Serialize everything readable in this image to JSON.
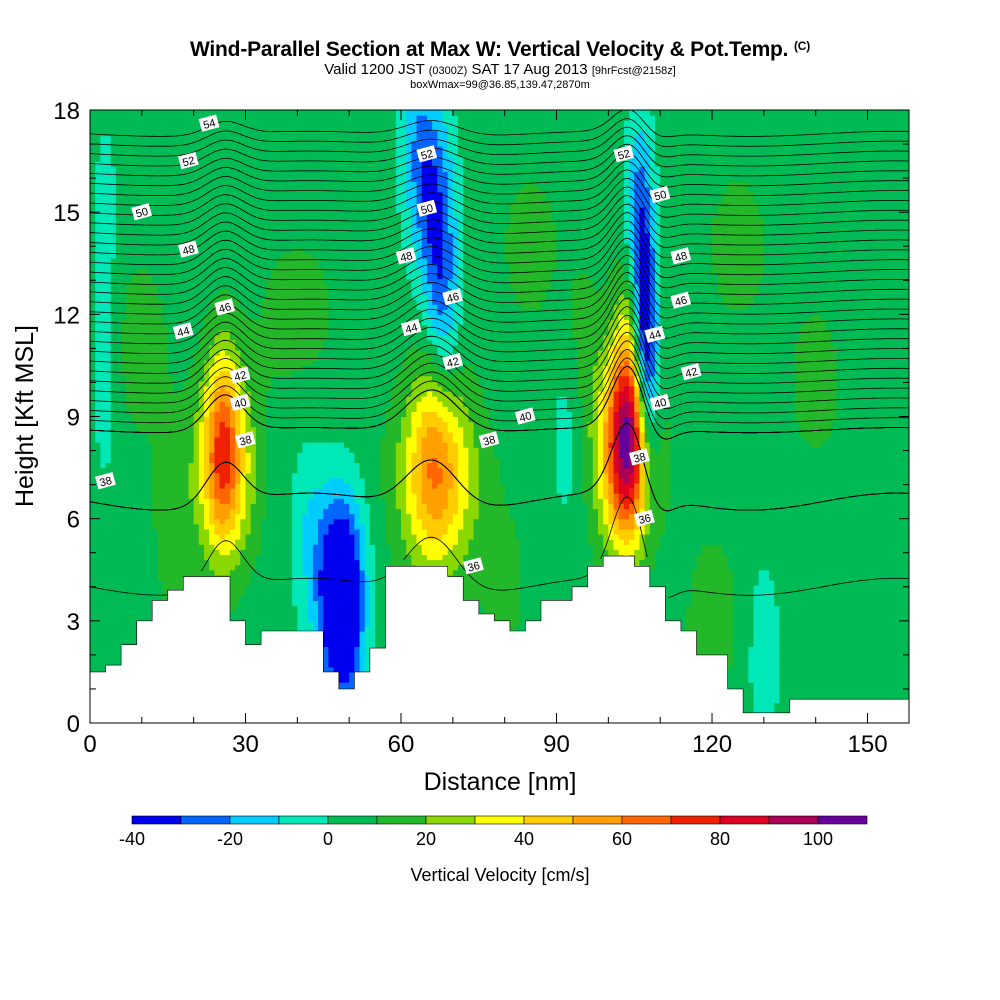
{
  "header": {
    "title": "Wind-Parallel Section at Max W: Vertical Velocity & Pot.Temp.",
    "copyright": "(C)",
    "valid_prefix": "Valid 1200 JST",
    "utc": "(0300Z)",
    "valid_date": "SAT 17 Aug 2013",
    "forecast": "[9hrFcst@2158z]",
    "box_info": "boxWmax=99@36.85,139.47,2870m"
  },
  "chart_data": {
    "type": "heatmap",
    "xlabel": "Distance [nm]",
    "ylabel": "Height [Kft MSL]",
    "xlim": [
      0,
      158
    ],
    "ylim": [
      0,
      18
    ],
    "x_ticks": [
      0,
      30,
      60,
      90,
      120,
      150
    ],
    "y_ticks": [
      0,
      3,
      6,
      9,
      12,
      15,
      18
    ],
    "colorbar": {
      "label": "Vertical Velocity [cm/s]",
      "levels": [
        -40,
        -30,
        -20,
        -10,
        0,
        10,
        20,
        30,
        40,
        50,
        60,
        70,
        80,
        90,
        100,
        110
      ],
      "tick_values": [
        -40,
        -20,
        0,
        20,
        40,
        60,
        80,
        100
      ],
      "tick_labels": [
        "-40",
        "-20",
        "0",
        "20",
        "40",
        "60",
        "80",
        "100"
      ],
      "colors": [
        "#0000ee",
        "#0066ff",
        "#00ccff",
        "#00e8b8",
        "#00bb55",
        "#22b82a",
        "#8ad800",
        "#ffff00",
        "#ffcc00",
        "#ffa000",
        "#ff6600",
        "#ee2200",
        "#dd0022",
        "#aa0055",
        "#66009a"
      ]
    },
    "background_w": 5,
    "w_features": [
      {
        "x": 26,
        "h": 7.5,
        "w": 12,
        "amp": 45
      },
      {
        "x": 25.5,
        "h": 8.5,
        "w": 7,
        "amp": 30
      },
      {
        "x": 67,
        "h": 7.2,
        "w": 16,
        "amp": 48
      },
      {
        "x": 66,
        "h": 8.5,
        "w": 8,
        "amp": 12
      },
      {
        "x": 103.5,
        "h": 8.0,
        "w": 12,
        "amp": 70
      },
      {
        "x": 103.5,
        "h": 8.5,
        "w": 7,
        "amp": 30
      },
      {
        "x": 105,
        "h": 11.5,
        "w": 8,
        "amp": 20
      },
      {
        "x": 107,
        "h": 11.5,
        "w": 5,
        "amp": -55
      },
      {
        "x": 106,
        "h": 15.0,
        "w": 6,
        "amp": -30
      },
      {
        "x": 108,
        "h": 9.0,
        "w": 5,
        "amp": -25
      },
      {
        "x": 66,
        "h": 15.5,
        "w": 9,
        "amp": -30
      },
      {
        "x": 68,
        "h": 12.5,
        "w": 7,
        "amp": -25
      },
      {
        "x": 63,
        "h": 17.5,
        "w": 8,
        "amp": -15
      },
      {
        "x": 48,
        "h": 4.0,
        "w": 10,
        "amp": -45
      },
      {
        "x": 49,
        "h": 3.0,
        "w": 8,
        "amp": -30
      },
      {
        "x": 42,
        "h": 5.8,
        "w": 8,
        "amp": -12
      },
      {
        "x": 3,
        "h": 10.0,
        "w": 5,
        "amp": -12
      },
      {
        "x": 3,
        "h": 15.0,
        "w": 5,
        "amp": -10
      },
      {
        "x": 130,
        "h": 2.0,
        "w": 7,
        "amp": -12
      },
      {
        "x": 92,
        "h": 8.5,
        "w": 7,
        "amp": -10
      },
      {
        "x": 16,
        "h": 6.0,
        "w": 8,
        "amp": 12
      },
      {
        "x": 10,
        "h": 11.0,
        "w": 12,
        "amp": 10
      },
      {
        "x": 40,
        "h": 12.0,
        "w": 20,
        "amp": 8
      },
      {
        "x": 85,
        "h": 14.0,
        "w": 15,
        "amp": 8
      },
      {
        "x": 125,
        "h": 14.0,
        "w": 16,
        "amp": 8
      },
      {
        "x": 140,
        "h": 10.0,
        "w": 14,
        "amp": 8
      },
      {
        "x": 80,
        "h": 4.0,
        "w": 10,
        "amp": 8
      },
      {
        "x": 120,
        "h": 3.0,
        "w": 12,
        "amp": 10
      },
      {
        "x": 95,
        "h": 11.0,
        "w": 8,
        "amp": 8
      }
    ],
    "terrain": {
      "x": [
        0,
        3,
        6,
        9,
        12,
        15,
        18,
        21,
        24,
        27,
        30,
        33,
        36,
        39,
        42,
        45,
        48,
        51,
        54,
        57,
        60,
        63,
        66,
        69,
        72,
        75,
        78,
        81,
        84,
        87,
        90,
        93,
        96,
        99,
        102,
        105,
        108,
        111,
        114,
        117,
        120,
        123,
        126,
        129,
        132,
        135,
        138,
        141,
        144,
        147,
        150,
        153,
        156,
        158
      ],
      "h": [
        1.5,
        1.7,
        2.3,
        3.0,
        3.6,
        3.9,
        4.3,
        4.3,
        4.3,
        3.0,
        2.3,
        2.7,
        2.7,
        2.7,
        2.7,
        1.5,
        1.0,
        1.5,
        2.2,
        4.6,
        4.6,
        4.6,
        4.6,
        4.3,
        3.6,
        3.2,
        3.0,
        2.7,
        3.0,
        3.6,
        3.6,
        4.0,
        4.6,
        4.9,
        4.9,
        4.6,
        4.0,
        3.0,
        2.7,
        2.0,
        2.0,
        1.0,
        0.3,
        0.3,
        0.3,
        0.7,
        0.7,
        0.7,
        0.7,
        0.7,
        0.7,
        0.7,
        0.7,
        0.7
      ]
    },
    "theta_contours": [
      {
        "value": 36,
        "label": "36",
        "label_at": [
          [
            74,
            4.6
          ],
          [
            107,
            6.0
          ]
        ]
      },
      {
        "value": 38,
        "label": "38",
        "label_at": [
          [
            3,
            7.1
          ],
          [
            30,
            8.3
          ],
          [
            77,
            8.3
          ],
          [
            106,
            7.8
          ]
        ]
      },
      {
        "value": 40,
        "label": "40",
        "label_at": [
          [
            29,
            9.4
          ],
          [
            84,
            9.0
          ],
          [
            110,
            9.4
          ]
        ]
      },
      {
        "value": 42,
        "label": "42",
        "label_at": [
          [
            29,
            10.2
          ],
          [
            70,
            10.6
          ],
          [
            116,
            10.3
          ]
        ]
      },
      {
        "value": 44,
        "label": "44",
        "label_at": [
          [
            18,
            11.5
          ],
          [
            62,
            11.6
          ],
          [
            109,
            11.4
          ]
        ]
      },
      {
        "value": 46,
        "label": "46",
        "label_at": [
          [
            26,
            12.2
          ],
          [
            70,
            12.5
          ],
          [
            114,
            12.4
          ]
        ]
      },
      {
        "value": 48,
        "label": "48",
        "label_at": [
          [
            19,
            13.9
          ],
          [
            61,
            13.7
          ],
          [
            114,
            13.7
          ]
        ]
      },
      {
        "value": 50,
        "label": "50",
        "label_at": [
          [
            10,
            15.0
          ],
          [
            65,
            15.1
          ],
          [
            110,
            15.5
          ]
        ]
      },
      {
        "value": 52,
        "label": "52",
        "label_at": [
          [
            19,
            16.5
          ],
          [
            65,
            16.7
          ],
          [
            103,
            16.7
          ]
        ]
      },
      {
        "value": 54,
        "label": "54",
        "label_at": [
          [
            23,
            17.6
          ]
        ]
      }
    ]
  }
}
